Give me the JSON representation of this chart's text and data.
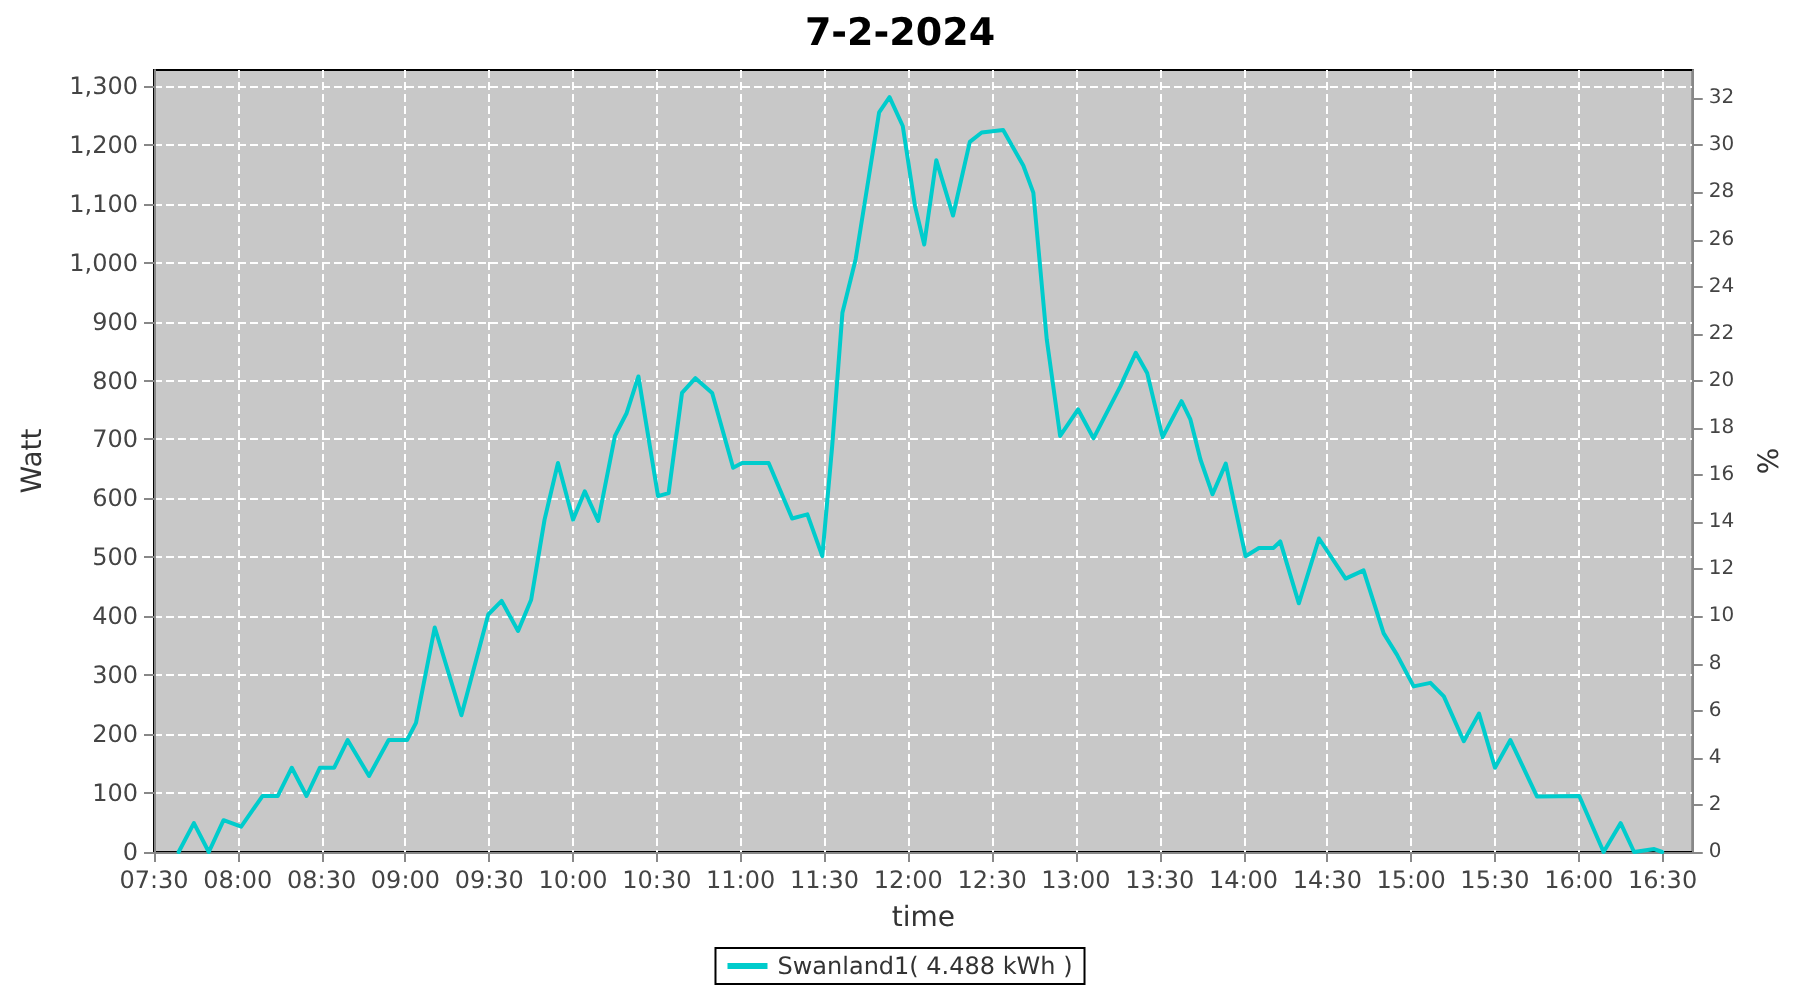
{
  "chart_data": {
    "type": "line",
    "title": "7-2-2024",
    "xlabel": "time",
    "ylabel": "Watt",
    "y2label": "%",
    "xlim": [
      7.5,
      16.68
    ],
    "xticks": [
      {
        "value": 7.5,
        "label": "07:30"
      },
      {
        "value": 8,
        "label": "08:00"
      },
      {
        "value": 8.5,
        "label": "08:30"
      },
      {
        "value": 9,
        "label": "09:00"
      },
      {
        "value": 9.5,
        "label": "09:30"
      },
      {
        "value": 10,
        "label": "10:00"
      },
      {
        "value": 10.5,
        "label": "10:30"
      },
      {
        "value": 11,
        "label": "11:00"
      },
      {
        "value": 11.5,
        "label": "11:30"
      },
      {
        "value": 12,
        "label": "12:00"
      },
      {
        "value": 12.5,
        "label": "12:30"
      },
      {
        "value": 13,
        "label": "13:00"
      },
      {
        "value": 13.5,
        "label": "13:30"
      },
      {
        "value": 14,
        "label": "14:00"
      },
      {
        "value": 14.5,
        "label": "14:30"
      },
      {
        "value": 15,
        "label": "15:00"
      },
      {
        "value": 15.5,
        "label": "15:30"
      },
      {
        "value": 16,
        "label": "16:00"
      },
      {
        "value": 16.5,
        "label": "16:30"
      }
    ],
    "ylim": [
      0,
      1327
    ],
    "yticks": [
      0,
      100,
      200,
      300,
      400,
      500,
      600,
      700,
      800,
      900,
      {
        "value": 1000,
        "label": "1,000"
      },
      {
        "value": 1100,
        "label": "1,100"
      },
      {
        "value": 1200,
        "label": "1,200"
      },
      {
        "value": 1300,
        "label": "1,300"
      }
    ],
    "y2lim": [
      0,
      33.2
    ],
    "y2ticks": [
      0,
      2,
      4,
      6,
      8,
      10,
      12,
      14,
      16,
      18,
      20,
      22,
      24,
      26,
      28,
      30,
      32
    ],
    "grid": true,
    "legend": "bottom",
    "marker": "none",
    "line_style": "solid",
    "series": [
      {
        "name": "Swanland1( 4.488 kWh )",
        "color": "#00cccc",
        "x": [
          7.647,
          7.738,
          7.827,
          7.915,
          8.02,
          8.147,
          8.238,
          8.322,
          8.41,
          8.49,
          8.575,
          8.655,
          8.783,
          8.9,
          9.01,
          9.063,
          9.175,
          9.334,
          9.494,
          9.574,
          9.672,
          9.75,
          9.83,
          9.91,
          10.0,
          10.07,
          10.15,
          10.25,
          10.32,
          10.39,
          10.507,
          10.57,
          10.65,
          10.73,
          10.83,
          10.955,
          11.008,
          11.167,
          11.307,
          11.398,
          11.487,
          11.546,
          11.607,
          11.686,
          11.766,
          11.826,
          11.888,
          11.967,
          12.04,
          12.095,
          12.167,
          12.267,
          12.367,
          12.438,
          12.566,
          12.686,
          12.746,
          12.826,
          12.906,
          13.013,
          13.105,
          13.265,
          13.357,
          13.425,
          13.517,
          13.63,
          13.683,
          13.743,
          13.815,
          13.894,
          14.012,
          14.092,
          14.179,
          14.219,
          14.33,
          14.45,
          14.609,
          14.716,
          14.836,
          14.915,
          15.015,
          15.115,
          15.195,
          15.314,
          15.405,
          15.5,
          15.592,
          15.751,
          16.003,
          16.148,
          16.25,
          16.33,
          16.45,
          16.498
        ],
        "values": [
          0,
          49,
          0,
          54,
          43,
          95,
          95,
          143,
          95,
          143,
          143,
          190,
          129,
          190,
          190,
          219,
          381,
          232,
          403,
          426,
          375,
          428,
          564,
          660,
          564,
          612,
          562,
          706,
          745,
          807,
          604,
          609,
          779,
          804,
          779,
          652,
          660,
          660,
          566,
          573,
          502,
          689,
          915,
          1006,
          1148,
          1255,
          1281,
          1232,
          1096,
          1031,
          1174,
          1080,
          1205,
          1221,
          1225,
          1165,
          1119,
          870,
          706,
          751,
          702,
          790,
          847,
          813,
          704,
          765,
          734,
          666,
          607,
          659,
          502,
          516,
          516,
          527,
          422,
          532,
          464,
          478,
          371,
          335,
          281,
          287,
          264,
          188,
          235,
          143,
          190,
          94,
          95,
          0,
          49,
          0,
          5,
          0
        ]
      }
    ]
  }
}
